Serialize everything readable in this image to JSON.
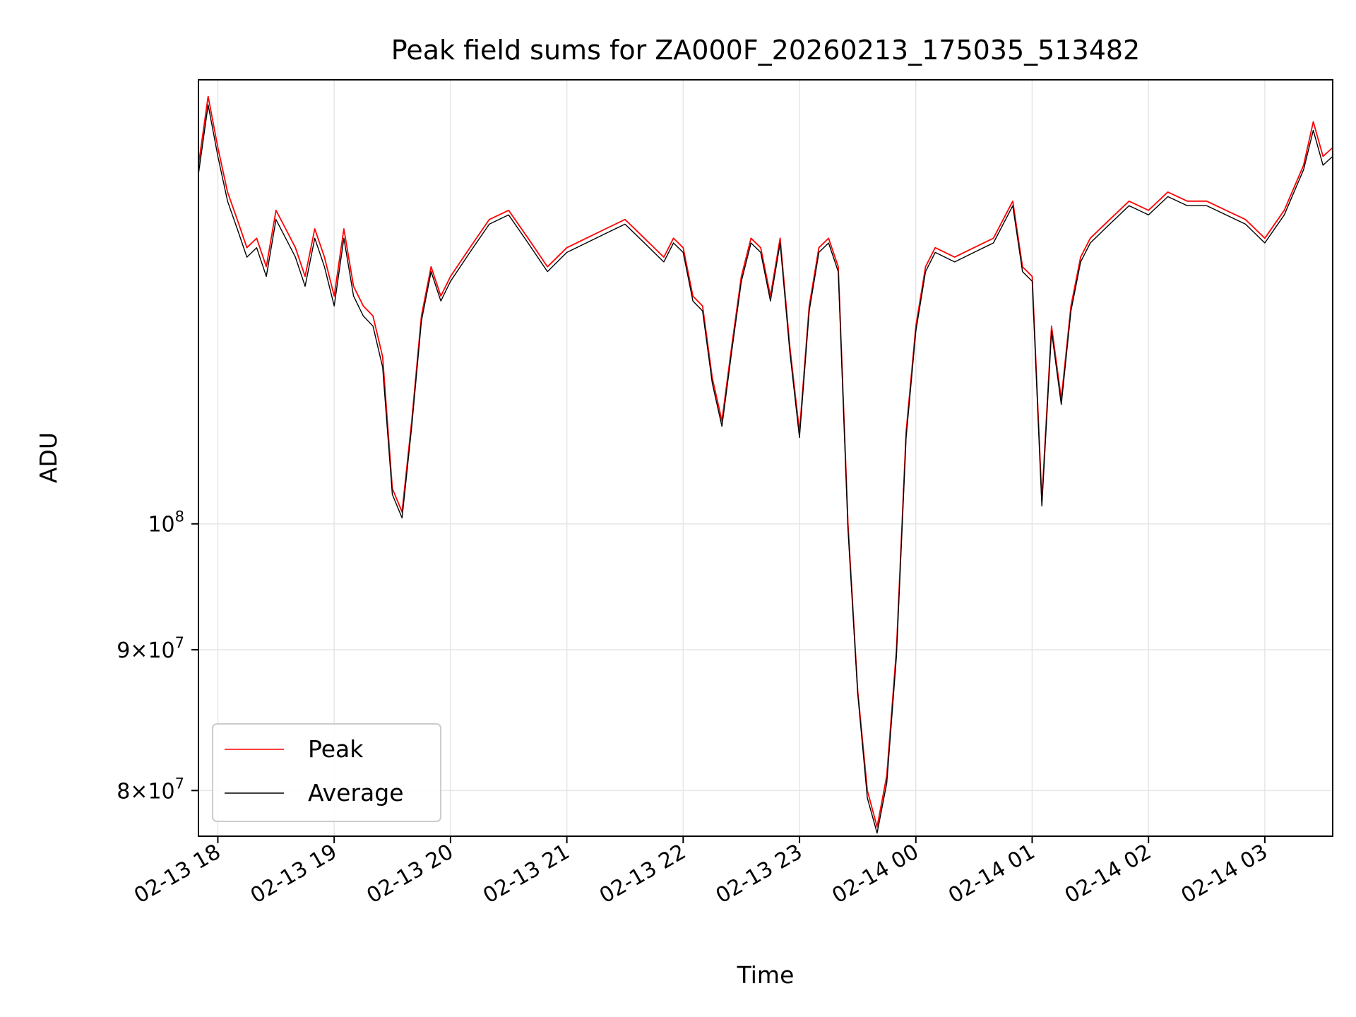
{
  "chart_data": {
    "type": "line",
    "title": "Peak field sums for ZA000F_20260213_175035_513482",
    "xlabel": "Time",
    "ylabel": "ADU",
    "yscale": "log",
    "ylim": [
      77000000,
      145000000
    ],
    "xlim": [
      "02-13 17:50",
      "02-14 03:35"
    ],
    "grid": true,
    "legend": "lower-left",
    "x_ticks": [
      "02-13 18",
      "02-13 19",
      "02-13 20",
      "02-13 21",
      "02-13 22",
      "02-13 23",
      "02-14 00",
      "02-14 01",
      "02-14 02",
      "02-14 03"
    ],
    "y_ticks": [
      {
        "value": 80000000,
        "mantissa": "8",
        "exp": "7"
      },
      {
        "value": 90000000,
        "mantissa": "9",
        "exp": "7"
      },
      {
        "value": 100000000,
        "mantissa": "",
        "exp": "8"
      }
    ],
    "x": [
      "02-13 17:50",
      "02-13 17:55",
      "02-13 18:00",
      "02-13 18:05",
      "02-13 18:10",
      "02-13 18:15",
      "02-13 18:20",
      "02-13 18:25",
      "02-13 18:30",
      "02-13 18:35",
      "02-13 18:40",
      "02-13 18:45",
      "02-13 18:50",
      "02-13 18:55",
      "02-13 19:00",
      "02-13 19:05",
      "02-13 19:10",
      "02-13 19:15",
      "02-13 19:20",
      "02-13 19:25",
      "02-13 19:30",
      "02-13 19:35",
      "02-13 19:40",
      "02-13 19:45",
      "02-13 19:50",
      "02-13 19:55",
      "02-13 20:00",
      "02-13 20:10",
      "02-13 20:20",
      "02-13 20:30",
      "02-13 20:40",
      "02-13 20:50",
      "02-13 21:00",
      "02-13 21:10",
      "02-13 21:20",
      "02-13 21:30",
      "02-13 21:40",
      "02-13 21:50",
      "02-13 21:55",
      "02-13 22:00",
      "02-13 22:05",
      "02-13 22:10",
      "02-13 22:15",
      "02-13 22:20",
      "02-13 22:25",
      "02-13 22:30",
      "02-13 22:35",
      "02-13 22:40",
      "02-13 22:45",
      "02-13 22:50",
      "02-13 22:55",
      "02-13 23:00",
      "02-13 23:05",
      "02-13 23:10",
      "02-13 23:15",
      "02-13 23:20",
      "02-13 23:25",
      "02-13 23:30",
      "02-13 23:35",
      "02-13 23:40",
      "02-13 23:45",
      "02-13 23:50",
      "02-13 23:55",
      "02-14 00:00",
      "02-14 00:05",
      "02-14 00:10",
      "02-14 00:20",
      "02-14 00:30",
      "02-14 00:40",
      "02-14 00:50",
      "02-14 00:55",
      "02-14 01:00",
      "02-14 01:05",
      "02-14 01:10",
      "02-14 01:15",
      "02-14 01:20",
      "02-14 01:25",
      "02-14 01:30",
      "02-14 01:40",
      "02-14 01:50",
      "02-14 02:00",
      "02-14 02:10",
      "02-14 02:20",
      "02-14 02:30",
      "02-14 02:40",
      "02-14 02:50",
      "02-14 03:00",
      "02-14 03:10",
      "02-14 03:20",
      "02-14 03:25",
      "02-14 03:30",
      "02-14 03:35"
    ],
    "series": [
      {
        "name": "Peak",
        "color": "#ff0000",
        "values": [
          135000000,
          143000000,
          137000000,
          132000000,
          129000000,
          126000000,
          127000000,
          124000000,
          130000000,
          128000000,
          126000000,
          123000000,
          128000000,
          125000000,
          121000000,
          128000000,
          122000000,
          120000000,
          119000000,
          115000000,
          103000000,
          101000000,
          109000000,
          119000000,
          124000000,
          121000000,
          123000000,
          126000000,
          129000000,
          130000000,
          127000000,
          124000000,
          126000000,
          127000000,
          128000000,
          129000000,
          127000000,
          125000000,
          127000000,
          126000000,
          121000000,
          120000000,
          113000000,
          109000000,
          116000000,
          123000000,
          127000000,
          126000000,
          121000000,
          127000000,
          116000000,
          108000000,
          120000000,
          126000000,
          127000000,
          124000000,
          100000000,
          87000000,
          80000000,
          77600000,
          81000000,
          90000000,
          108000000,
          118000000,
          124000000,
          126000000,
          125000000,
          126000000,
          127000000,
          131000000,
          124000000,
          123000000,
          102000000,
          118000000,
          111000000,
          120000000,
          125000000,
          127000000,
          129000000,
          131000000,
          130000000,
          132000000,
          131000000,
          131000000,
          130000000,
          129000000,
          127000000,
          130000000,
          135000000,
          140000000,
          136000000,
          137000000
        ]
      },
      {
        "name": "Average",
        "color": "#000000",
        "values": [
          134000000,
          142000000,
          136000000,
          131000000,
          128000000,
          125000000,
          126000000,
          123000000,
          129000000,
          127000000,
          125000000,
          122000000,
          127000000,
          124000000,
          120000000,
          127000000,
          121000000,
          119000000,
          118000000,
          114000000,
          102500000,
          100500000,
          108500000,
          118500000,
          123500000,
          120500000,
          122500000,
          125500000,
          128500000,
          129500000,
          126500000,
          123500000,
          125500000,
          126500000,
          127500000,
          128500000,
          126500000,
          124500000,
          126500000,
          125500000,
          120500000,
          119500000,
          112500000,
          108500000,
          115500000,
          122500000,
          126500000,
          125500000,
          120500000,
          126500000,
          115500000,
          107500000,
          119500000,
          125500000,
          126500000,
          123500000,
          99500000,
          86800000,
          79500000,
          77200000,
          80500000,
          89500000,
          107500000,
          117500000,
          123500000,
          125500000,
          124500000,
          125500000,
          126500000,
          130500000,
          123500000,
          122500000,
          101500000,
          117500000,
          110500000,
          119500000,
          124500000,
          126500000,
          128500000,
          130500000,
          129500000,
          131500000,
          130500000,
          130500000,
          129500000,
          128500000,
          126500000,
          129500000,
          134500000,
          139000000,
          135000000,
          136000000
        ]
      }
    ]
  }
}
